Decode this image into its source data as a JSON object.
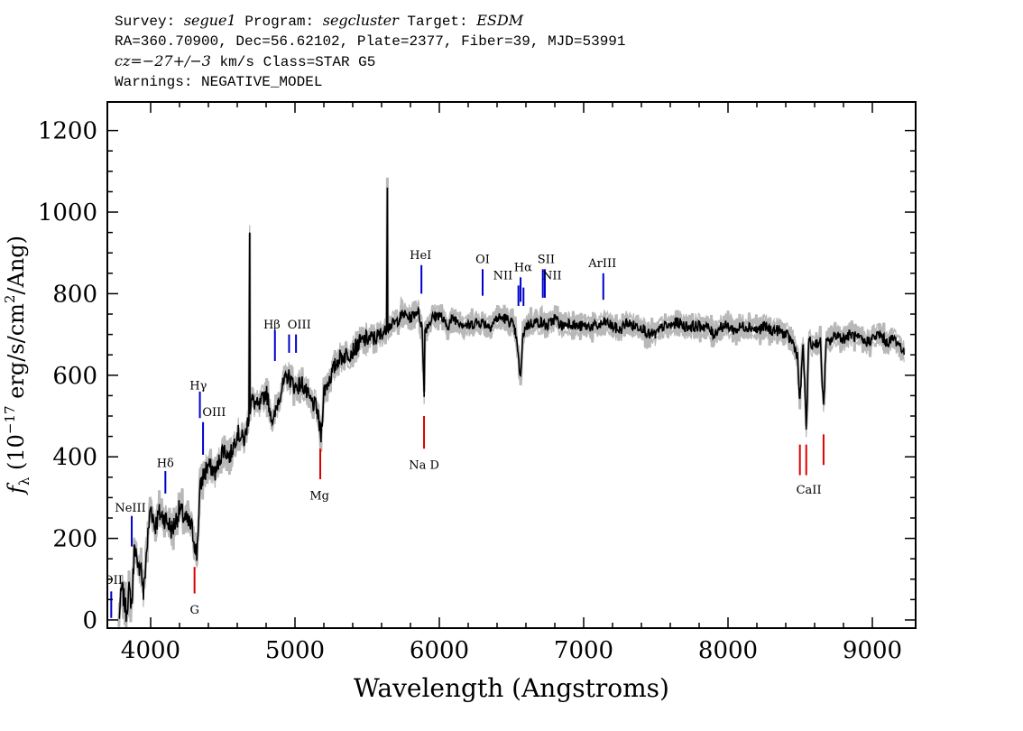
{
  "header": {
    "survey_label": "Survey:",
    "survey_value": "segue1",
    "program_label": "Program:",
    "program_value": "segcluster",
    "target_label": "Target:",
    "target_value": "ESDM",
    "line2": "RA=360.70900, Dec=56.62102, Plate=2377, Fiber=39, MJD=53991",
    "cz_label": "cz=",
    "cz_value": "−27+/−3",
    "cz_rest": " km/s Class=STAR G5",
    "line4": "Warnings: NEGATIVE_MODEL"
  },
  "chart_data": {
    "type": "line",
    "title": "",
    "xlabel": "Wavelength (Angstroms)",
    "ylabel_parts": {
      "f": "f",
      "lambda": "λ",
      "pre": " (10",
      "exp1": "−17",
      "mid": " erg/s/cm",
      "exp2": "2",
      "post": "/Ang)"
    },
    "xlim": [
      3700,
      9300
    ],
    "ylim": [
      -20,
      1270
    ],
    "x_ticks": [
      4000,
      5000,
      6000,
      7000,
      8000,
      9000
    ],
    "y_ticks": [
      0,
      200,
      400,
      600,
      800,
      1000,
      1200
    ],
    "series": [
      {
        "name": "flux",
        "color": "#000000",
        "x": [
          3780,
          3800,
          3830,
          3850,
          3870,
          3890,
          3910,
          3930,
          3950,
          3970,
          4000,
          4030,
          4060,
          4100,
          4150,
          4200,
          4250,
          4280,
          4300,
          4320,
          4340,
          4360,
          4400,
          4450,
          4500,
          4550,
          4600,
          4650,
          4700,
          4750,
          4800,
          4850,
          4870,
          4900,
          4950,
          5000,
          5050,
          5100,
          5150,
          5180,
          5200,
          5250,
          5300,
          5350,
          5400,
          5450,
          5500,
          5550,
          5600,
          5650,
          5700,
          5750,
          5800,
          5850,
          5880,
          5895,
          5900,
          5950,
          6000,
          6050,
          6100,
          6150,
          6200,
          6250,
          6300,
          6350,
          6400,
          6450,
          6500,
          6530,
          6563,
          6580,
          6600,
          6650,
          6700,
          6750,
          6800,
          6850,
          6900,
          6950,
          7000,
          7050,
          7100,
          7150,
          7200,
          7250,
          7300,
          7350,
          7400,
          7450,
          7500,
          7550,
          7600,
          7650,
          7700,
          7750,
          7800,
          7850,
          7900,
          7950,
          8000,
          8050,
          8100,
          8150,
          8200,
          8250,
          8300,
          8350,
          8400,
          8450,
          8480,
          8498,
          8520,
          8542,
          8560,
          8580,
          8600,
          8640,
          8662,
          8680,
          8700,
          8750,
          8800,
          8850,
          8900,
          8950,
          9000,
          9050,
          9100,
          9150,
          9200,
          9220
        ],
        "y": [
          0,
          80,
          20,
          70,
          40,
          200,
          110,
          150,
          60,
          160,
          280,
          230,
          260,
          250,
          220,
          270,
          240,
          230,
          200,
          160,
          310,
          350,
          380,
          360,
          420,
          400,
          460,
          440,
          540,
          520,
          560,
          480,
          520,
          560,
          600,
          570,
          580,
          540,
          520,
          450,
          560,
          600,
          640,
          650,
          660,
          680,
          690,
          690,
          700,
          720,
          730,
          750,
          740,
          760,
          720,
          560,
          710,
          740,
          750,
          720,
          740,
          730,
          720,
          730,
          730,
          720,
          740,
          740,
          730,
          700,
          590,
          700,
          720,
          730,
          730,
          720,
          740,
          720,
          730,
          720,
          720,
          720,
          720,
          730,
          720,
          710,
          730,
          720,
          720,
          700,
          700,
          720,
          720,
          730,
          720,
          720,
          720,
          720,
          700,
          720,
          720,
          710,
          720,
          720,
          710,
          720,
          710,
          710,
          700,
          680,
          650,
          530,
          680,
          470,
          690,
          670,
          680,
          680,
          520,
          680,
          680,
          700,
          690,
          700,
          690,
          680,
          690,
          700,
          680,
          690,
          670,
          650
        ]
      }
    ],
    "emission_spikes": [
      {
        "x": 4686,
        "y": 950
      },
      {
        "x": 5640,
        "y": 1060
      }
    ],
    "emission_lines": [
      {
        "label": "OII",
        "x": 3727,
        "y1": 5,
        "y2": 70
      },
      {
        "label": "NeIII",
        "x": 3869,
        "y1": 180,
        "y2": 255
      },
      {
        "label": "Hδ",
        "x": 4102,
        "y1": 310,
        "y2": 365
      },
      {
        "label": "Hγ",
        "x": 4341,
        "y1": 495,
        "y2": 560
      },
      {
        "label": "OIII",
        "x": 4363,
        "y1": 405,
        "y2": 485
      },
      {
        "label": "Hβ",
        "x": 4861,
        "y1": 635,
        "y2": 710
      },
      {
        "label": "OIII",
        "x": 4959,
        "y1": 655,
        "y2": 700
      },
      {
        "label": "OIII",
        "x": 5007,
        "y1": 655,
        "y2": 700
      },
      {
        "label": "HeI",
        "x": 5876,
        "y1": 800,
        "y2": 870
      },
      {
        "label": "OI",
        "x": 6300,
        "y1": 795,
        "y2": 860
      },
      {
        "label": "NII",
        "x": 6548,
        "y1": 770,
        "y2": 820
      },
      {
        "label": "Hα",
        "x": 6563,
        "y1": 780,
        "y2": 840
      },
      {
        "label": "NII",
        "x": 6583,
        "y1": 770,
        "y2": 815
      },
      {
        "label": "SII",
        "x": 6717,
        "y1": 790,
        "y2": 860
      },
      {
        "label": "SII",
        "x": 6731,
        "y1": 790,
        "y2": 860
      },
      {
        "label": "ArIII",
        "x": 7136,
        "y1": 785,
        "y2": 850
      }
    ],
    "absorption_lines": [
      {
        "label": "G",
        "x": 4304,
        "y1": 65,
        "y2": 130
      },
      {
        "label": "Mg",
        "x": 5175,
        "y1": 345,
        "y2": 420
      },
      {
        "label": "Na D",
        "x": 5894,
        "y1": 420,
        "y2": 500
      },
      {
        "label": "CaII",
        "x": 8498,
        "y1": 355,
        "y2": 430
      },
      {
        "label": "CaII",
        "x": 8542,
        "y1": 355,
        "y2": 430
      },
      {
        "label": "CaII",
        "x": 8662,
        "y1": 380,
        "y2": 455
      }
    ],
    "line_labels": [
      {
        "text": "OII",
        "x": 3740,
        "y": 88
      },
      {
        "text": "NeIII",
        "x": 3860,
        "y": 265
      },
      {
        "text": "Hδ",
        "x": 4102,
        "y": 375
      },
      {
        "text": "Hγ",
        "x": 4330,
        "y": 565
      },
      {
        "text": "OIII",
        "x": 4440,
        "y": 500
      },
      {
        "text": "Hβ",
        "x": 4840,
        "y": 715
      },
      {
        "text": "OIII",
        "x": 5030,
        "y": 715
      },
      {
        "text": "HeI",
        "x": 5870,
        "y": 885
      },
      {
        "text": "OI",
        "x": 6300,
        "y": 875
      },
      {
        "text": "NII",
        "x": 6440,
        "y": 835
      },
      {
        "text": "Hα",
        "x": 6580,
        "y": 855
      },
      {
        "text": "SII",
        "x": 6740,
        "y": 875
      },
      {
        "text": "NII",
        "x": 6780,
        "y": 835
      },
      {
        "text": "ArIII",
        "x": 7130,
        "y": 865
      },
      {
        "text": "G",
        "x": 4304,
        "y": 15
      },
      {
        "text": "Mg",
        "x": 5170,
        "y": 295
      },
      {
        "text": "Na D",
        "x": 5894,
        "y": 370
      },
      {
        "text": "CaII",
        "x": 8560,
        "y": 310
      }
    ],
    "colors": {
      "emission": "#0000cc",
      "absorption": "#dd0000",
      "flux": "#000000",
      "error": "#b8b8b8",
      "axes": "#000000"
    }
  }
}
